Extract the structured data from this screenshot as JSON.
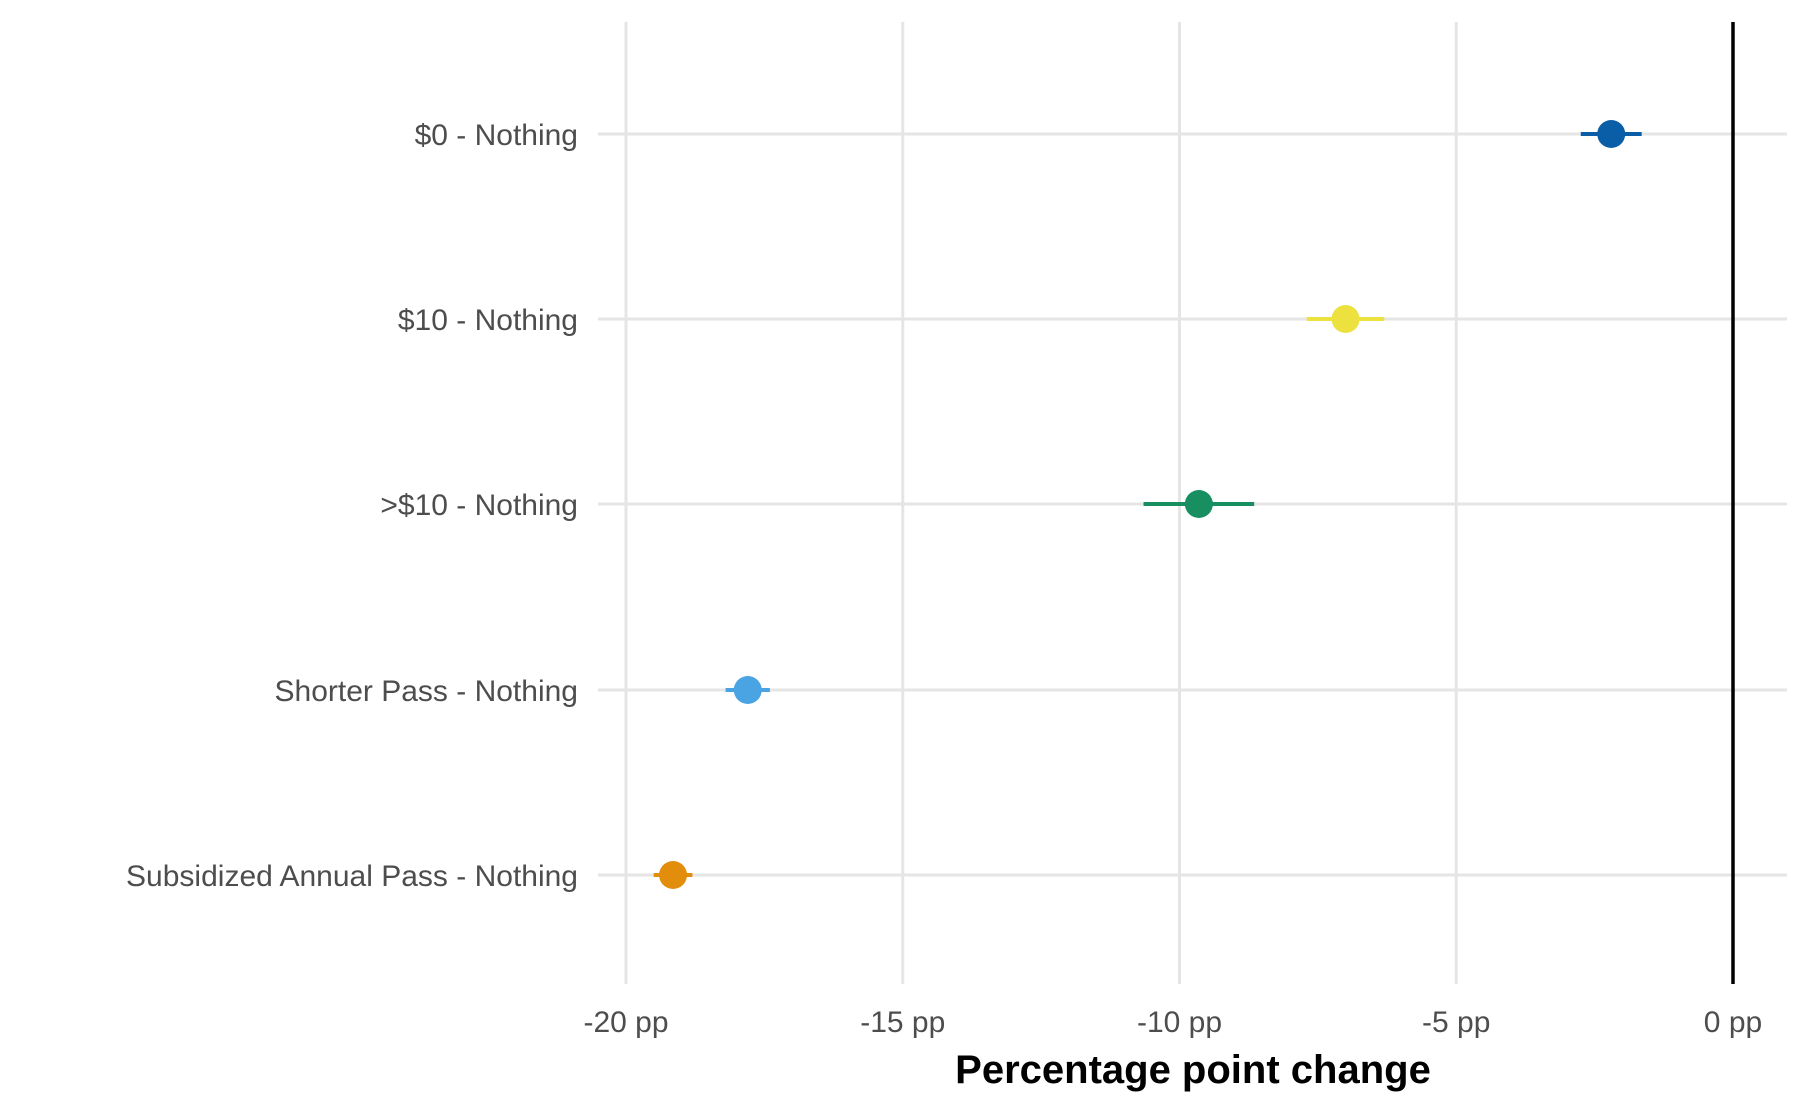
{
  "chart_data": {
    "type": "scatter",
    "subtype": "dot-and-whisker",
    "title": "",
    "xlabel": "Percentage point change",
    "ylabel": "",
    "xlim": [
      -20.0,
      1.0
    ],
    "x_ticks": [
      -20,
      -15,
      -10,
      -5,
      0
    ],
    "x_tick_labels": [
      "-20 pp",
      "-15 pp",
      "-10 pp",
      "-5 pp",
      "0 pp"
    ],
    "reference_line": 0,
    "grid": true,
    "legend": "none",
    "categories": [
      "$0 - Nothing",
      "$10 - Nothing",
      ">$10 - Nothing",
      "Shorter Pass - Nothing",
      "Subsidized Annual Pass - Nothing"
    ],
    "points": [
      {
        "category": "$0 - Nothing",
        "estimate": -2.2,
        "ci_low": -2.75,
        "ci_high": -1.65,
        "color": "#0a5ea8"
      },
      {
        "category": "$10 - Nothing",
        "estimate": -7.0,
        "ci_low": -7.7,
        "ci_high": -6.3,
        "color": "#ece13f"
      },
      {
        "category": ">$10 - Nothing",
        "estimate": -9.65,
        "ci_low": -10.65,
        "ci_high": -8.65,
        "color": "#188f61"
      },
      {
        "category": "Shorter Pass - Nothing",
        "estimate": -17.8,
        "ci_low": -18.2,
        "ci_high": -17.4,
        "color": "#4aa4e3"
      },
      {
        "category": "Subsidized Annual Pass - Nothing",
        "estimate": -19.15,
        "ci_low": -19.5,
        "ci_high": -18.8,
        "color": "#e38d0c"
      }
    ]
  }
}
